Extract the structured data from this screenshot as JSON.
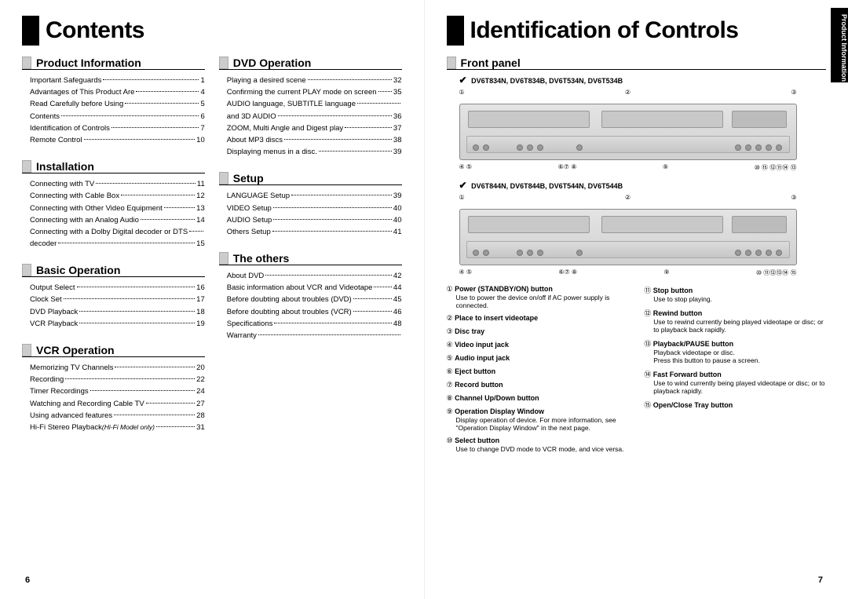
{
  "page_left": {
    "title": "Contents",
    "page_number": "6",
    "columns": [
      [
        {
          "title": "Product Information",
          "items": [
            {
              "label": "Important Safeguards",
              "page": "1"
            },
            {
              "label": "Advantages of This Product Are",
              "page": "4"
            },
            {
              "label": "Read Carefully before Using",
              "page": "5"
            },
            {
              "label": "Contents",
              "page": "6"
            },
            {
              "label": "Identification of Controls",
              "page": "7"
            },
            {
              "label": "Remote Control",
              "page": "10"
            }
          ]
        },
        {
          "title": "Installation",
          "items": [
            {
              "label": "Connecting with TV",
              "page": "11"
            },
            {
              "label": "Connecting with Cable Box",
              "page": "12"
            },
            {
              "label": "Connecting with Other Video Equipment",
              "page": "13"
            },
            {
              "label": "Connecting with an Analog Audio",
              "page": "14"
            },
            {
              "label": "Connecting with a Dolby Digital decoder or DTS",
              "page": ""
            },
            {
              "label": "decoder",
              "page": "15"
            }
          ]
        },
        {
          "title": "Basic Operation",
          "items": [
            {
              "label": "Output Select",
              "page": "16"
            },
            {
              "label": "Clock Set",
              "page": "17"
            },
            {
              "label": "DVD Playback",
              "page": "18"
            },
            {
              "label": "VCR Playback",
              "page": "19"
            }
          ]
        },
        {
          "title": "VCR Operation",
          "items": [
            {
              "label": "Memorizing TV Channels",
              "page": "20"
            },
            {
              "label": "Recording",
              "page": "22"
            },
            {
              "label": "Timer Recordings",
              "page": "24"
            },
            {
              "label": "Watching and Recording Cable TV",
              "page": "27"
            },
            {
              "label": "Using advanced features",
              "page": "28"
            },
            {
              "label": "Hi-Fi Stereo Playback",
              "italic": "(Hi-Fi Model only)",
              "page": "31"
            }
          ]
        }
      ],
      [
        {
          "title": "DVD Operation",
          "items": [
            {
              "label": "Playing a desired scene",
              "page": "32"
            },
            {
              "label": "Confirming the current PLAY mode on screen",
              "page": "35"
            },
            {
              "label": "AUDIO language, SUBTITLE language",
              "page": ""
            },
            {
              "label": "and 3D AUDIO",
              "page": "36"
            },
            {
              "label": "ZOOM, Multi Angle and Digest play",
              "page": "37"
            },
            {
              "label": "About MP3 discs",
              "page": "38"
            },
            {
              "label": "Displaying menus in a disc.",
              "page": "39"
            }
          ]
        },
        {
          "title": "Setup",
          "items": [
            {
              "label": "LANGUAGE Setup",
              "page": "39"
            },
            {
              "label": "VIDEO Setup",
              "page": "40"
            },
            {
              "label": "AUDIO Setup",
              "page": "40"
            },
            {
              "label": "Others Setup",
              "page": "41"
            }
          ]
        },
        {
          "title": "The others",
          "items": [
            {
              "label": "About DVD",
              "page": "42"
            },
            {
              "label": "Basic information about VCR and Videotape",
              "page": "44"
            },
            {
              "label": "Before doubting about troubles (DVD)",
              "page": "45"
            },
            {
              "label": "Before doubting about troubles (VCR)",
              "page": "46"
            },
            {
              "label": "Specifications",
              "page": "48"
            },
            {
              "label": "Warranty",
              "page": ""
            }
          ]
        }
      ]
    ]
  },
  "page_right": {
    "title": "Identification of Controls",
    "side_tab": "Product Information",
    "page_number": "7",
    "section_title": "Front panel",
    "models1": "DV6T834N, DV6T834B, DV6T534N, DV6T534B",
    "models2": "DV6T844N, DV6T844B, DV6T544N, DV6T544B",
    "callout_top": [
      "①",
      "②",
      "③"
    ],
    "callout_bottom": [
      "④ ⑤",
      "⑥⑦ ⑧",
      "⑨",
      "⑩   ⑮ ⑫⑪⑭ ⑬"
    ],
    "callout_bottom2": [
      "④ ⑤",
      "⑥⑦ ⑧",
      "⑨",
      "⑩  ⑪⑫⑬⑭  ⑮"
    ],
    "controls_left": [
      {
        "num": "①",
        "title": "Power (STANDBY/ON) button",
        "desc": "Use to power the device on/off if AC power supply is connected."
      },
      {
        "num": "②",
        "title": "Place to insert videotape",
        "desc": ""
      },
      {
        "num": "③",
        "title": "Disc tray",
        "desc": ""
      },
      {
        "num": "④",
        "title": "Video input jack",
        "desc": ""
      },
      {
        "num": "⑤",
        "title": "Audio input jack",
        "desc": ""
      },
      {
        "num": "⑥",
        "title": "Eject button",
        "desc": ""
      },
      {
        "num": "⑦",
        "title": "Record button",
        "desc": ""
      },
      {
        "num": "⑧",
        "title": "Channel Up/Down button",
        "desc": ""
      },
      {
        "num": "⑨",
        "title": "Operation Display Window",
        "desc": "Display operation of device. For more information, see \"Operation Display Window\" in the next page."
      },
      {
        "num": "⑩",
        "title": "Select button",
        "desc": "Use to change DVD mode to VCR mode, and vice versa."
      }
    ],
    "controls_right": [
      {
        "num": "⑪",
        "title": "Stop button",
        "desc": "Use to stop playing."
      },
      {
        "num": "⑫",
        "title": "Rewind button",
        "desc": "Use to rewind currently being played videotape or disc; or to playback back rapidly."
      },
      {
        "num": "⑬",
        "title": "Playback/PAUSE button",
        "desc": "Playback videotape or disc.\nPress this button to pause a screen."
      },
      {
        "num": "⑭",
        "title": "Fast Forward button",
        "desc": "Use to wind currently being played videotape or disc; or to playback rapidly."
      },
      {
        "num": "⑮",
        "title": "Open/Close Tray button",
        "desc": ""
      }
    ]
  },
  "colors": {
    "black": "#000000",
    "grey_box": "#cccccc",
    "panel_grad_top": "#e4e4e4",
    "panel_grad_bot": "#d0d0d0"
  }
}
